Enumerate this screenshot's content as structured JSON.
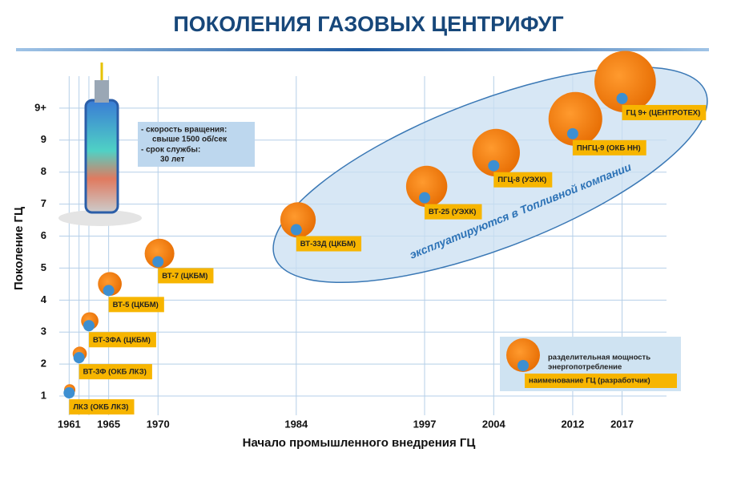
{
  "chart_data": {
    "type": "bubble",
    "title": "ПОКОЛЕНИЯ ГАЗОВЫХ ЦЕНТРИФУГ",
    "x_label": "Начало промышленного внедрения ГЦ",
    "y_label": "Поколение ГЦ",
    "x": [
      1961,
      1962,
      1963,
      1965,
      1970,
      1984,
      1997,
      2004,
      2012,
      2017
    ],
    "values": [
      1.1,
      2.2,
      3.2,
      4.3,
      5.2,
      6.2,
      7.2,
      8.2,
      9.2,
      10.3
    ],
    "sizes": [
      1,
      1.6,
      2.4,
      4.5,
      7,
      10,
      13.5,
      18,
      23,
      30
    ],
    "labels": [
      "ЛКЗ (ОКБ ЛКЗ)",
      "ВТ-3Ф (ОКБ ЛКЗ)",
      "ВТ-3ФА (ЦКБМ)",
      "ВТ-5 (ЦКБМ)",
      "ВТ-7 (ЦКБМ)",
      "ВТ-33Д (ЦКБМ)",
      "ВТ-25 (УЭХК)",
      "ПГЦ-8 (УЭХК)",
      "ПНГЦ-9 (ОКБ НН)",
      "ГЦ 9+ (ЦЕНТРОТЕХ)"
    ],
    "color": "#f07d0c",
    "dot_color": "#3d8fd1",
    "label_color": "#f7b500",
    "xlim": [
      1960,
      2021.5
    ],
    "ylim": [
      0.6,
      11
    ],
    "xticks": [
      1961,
      1965,
      1970,
      1984,
      1997,
      2004,
      2012,
      2017
    ],
    "yticks": [
      1,
      2,
      3,
      4,
      5,
      6,
      7,
      8,
      9,
      {
        "value": 10,
        "label": "9+"
      }
    ],
    "grid": true,
    "legend": {
      "size": "разделительная мощность",
      "dot": "энергопотребление",
      "label": "наименование ГЦ (разработчик)"
    },
    "annotation": "эксплуатируются в Топливной компании",
    "info_box": [
      "- скорость вращения:",
      "свыше 1500 об/сек",
      "- срок службы:",
      "30 лет"
    ]
  }
}
